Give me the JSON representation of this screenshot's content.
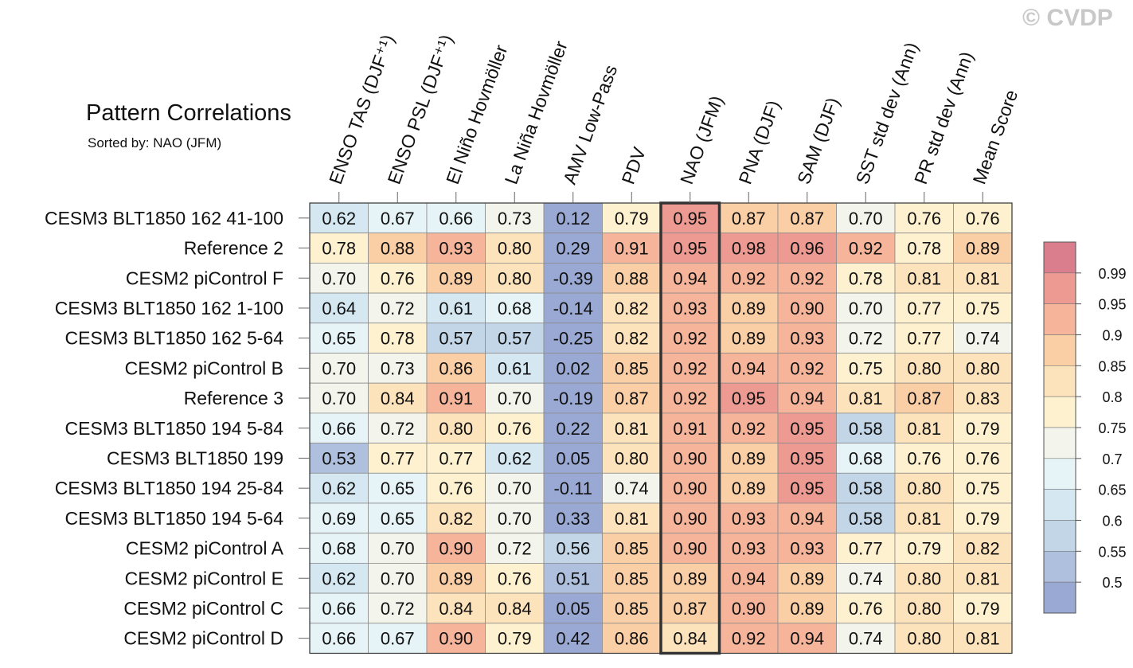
{
  "watermark": "© CVDP",
  "chart_data": {
    "type": "heatmap",
    "title": "Pattern Correlations",
    "subtitle": "Sorted by: NAO (JFM)",
    "columns": [
      "ENSO TAS (DJF⁺¹)",
      "ENSO PSL (DJF⁺¹)",
      "El Niño Hovmöller",
      "La Niña Hovmöller",
      "AMV Low-Pass",
      "PDV",
      "NAO (JFM)",
      "PNA (DJF)",
      "SAM (DJF)",
      "SST std dev (Ann)",
      "PR std dev (Ann)",
      "Mean Score"
    ],
    "rows": [
      "CESM3 BLT1850 162 41-100",
      "Reference 2",
      "CESM2 piControl F",
      "CESM3 BLT1850 162 1-100",
      "CESM3 BLT1850 162 5-64",
      "CESM2 piControl B",
      "Reference 3",
      "CESM3 BLT1850 194 5-84",
      "CESM3 BLT1850 199",
      "CESM3 BLT1850 194 25-84",
      "CESM3 BLT1850 194 5-64",
      "CESM2 piControl A",
      "CESM2 piControl E",
      "CESM2 piControl C",
      "CESM2 piControl D"
    ],
    "values": [
      [
        "0.62",
        "0.67",
        "0.66",
        "0.73",
        "0.12",
        "0.79",
        "0.95",
        "0.87",
        "0.87",
        "0.70",
        "0.76",
        "0.76"
      ],
      [
        "0.78",
        "0.88",
        "0.93",
        "0.80",
        "0.29",
        "0.91",
        "0.95",
        "0.98",
        "0.96",
        "0.92",
        "0.78",
        "0.89"
      ],
      [
        "0.70",
        "0.76",
        "0.89",
        "0.80",
        "-0.39",
        "0.88",
        "0.94",
        "0.92",
        "0.92",
        "0.78",
        "0.81",
        "0.81"
      ],
      [
        "0.64",
        "0.72",
        "0.61",
        "0.68",
        "-0.14",
        "0.82",
        "0.93",
        "0.89",
        "0.90",
        "0.70",
        "0.77",
        "0.75"
      ],
      [
        "0.65",
        "0.78",
        "0.57",
        "0.57",
        "-0.25",
        "0.82",
        "0.92",
        "0.89",
        "0.93",
        "0.72",
        "0.77",
        "0.74"
      ],
      [
        "0.70",
        "0.73",
        "0.86",
        "0.61",
        "0.02",
        "0.85",
        "0.92",
        "0.94",
        "0.92",
        "0.75",
        "0.80",
        "0.80"
      ],
      [
        "0.70",
        "0.84",
        "0.91",
        "0.70",
        "-0.19",
        "0.87",
        "0.92",
        "0.95",
        "0.94",
        "0.81",
        "0.87",
        "0.83"
      ],
      [
        "0.66",
        "0.72",
        "0.80",
        "0.76",
        "0.22",
        "0.81",
        "0.91",
        "0.92",
        "0.95",
        "0.58",
        "0.81",
        "0.79"
      ],
      [
        "0.53",
        "0.77",
        "0.77",
        "0.62",
        "0.05",
        "0.80",
        "0.90",
        "0.89",
        "0.95",
        "0.68",
        "0.76",
        "0.76"
      ],
      [
        "0.62",
        "0.65",
        "0.76",
        "0.70",
        "-0.11",
        "0.74",
        "0.90",
        "0.89",
        "0.95",
        "0.58",
        "0.80",
        "0.75"
      ],
      [
        "0.69",
        "0.65",
        "0.82",
        "0.70",
        "0.33",
        "0.81",
        "0.90",
        "0.93",
        "0.94",
        "0.58",
        "0.81",
        "0.79"
      ],
      [
        "0.68",
        "0.70",
        "0.90",
        "0.72",
        "0.56",
        "0.85",
        "0.90",
        "0.93",
        "0.93",
        "0.77",
        "0.79",
        "0.82"
      ],
      [
        "0.62",
        "0.70",
        "0.89",
        "0.76",
        "0.51",
        "0.85",
        "0.89",
        "0.94",
        "0.89",
        "0.74",
        "0.80",
        "0.81"
      ],
      [
        "0.66",
        "0.72",
        "0.84",
        "0.84",
        "0.05",
        "0.85",
        "0.87",
        "0.90",
        "0.89",
        "0.76",
        "0.80",
        "0.79"
      ],
      [
        "0.66",
        "0.67",
        "0.90",
        "0.79",
        "0.42",
        "0.86",
        "0.84",
        "0.92",
        "0.94",
        "0.74",
        "0.80",
        "0.81"
      ]
    ],
    "highlight_column": "NAO (JFM)",
    "colorbar": {
      "levels": [
        0.5,
        0.55,
        0.6,
        0.65,
        0.7,
        0.75,
        0.8,
        0.85,
        0.9,
        0.95,
        0.99
      ],
      "labels": [
        "0.5",
        "0.55",
        "0.6",
        "0.65",
        "0.7",
        "0.75",
        "0.8",
        "0.85",
        "0.9",
        "0.95",
        "0.99"
      ],
      "colors": [
        "#9aa9d3",
        "#afc0de",
        "#c2d6e8",
        "#d5e8f2",
        "#e6f3f7",
        "#f3f4ec",
        "#fdf1cf",
        "#fde3bb",
        "#fbcfa6",
        "#f6b59b",
        "#ec9a92",
        "#da7e8e"
      ]
    }
  }
}
